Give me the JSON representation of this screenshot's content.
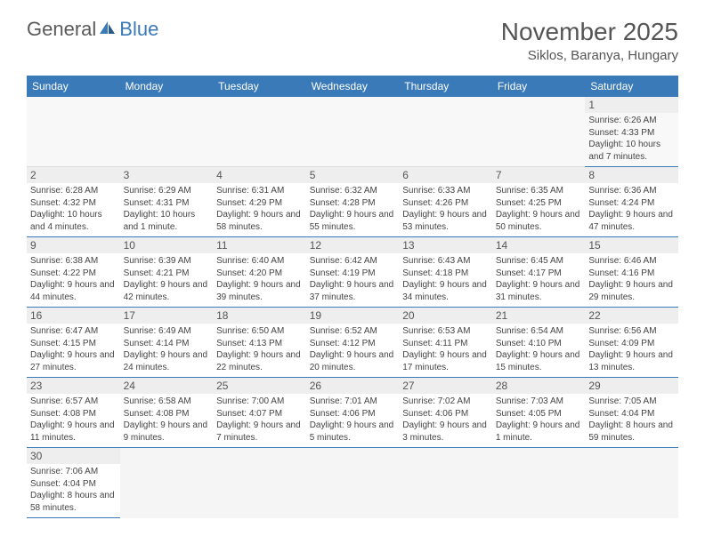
{
  "logo": {
    "text1": "General",
    "text2": "Blue"
  },
  "title": "November 2025",
  "location": "Siklos, Baranya, Hungary",
  "daysOfWeek": [
    "Sunday",
    "Monday",
    "Tuesday",
    "Wednesday",
    "Thursday",
    "Friday",
    "Saturday"
  ],
  "colors": {
    "headerBg": "#3a7ab8",
    "headerText": "#ffffff",
    "rowBorder": "#3a7ab8",
    "dayNumBg": "#eeeeee"
  },
  "weeks": [
    [
      null,
      null,
      null,
      null,
      null,
      null,
      {
        "n": "1",
        "sr": "Sunrise: 6:26 AM",
        "ss": "Sunset: 4:33 PM",
        "dl": "Daylight: 10 hours and 7 minutes."
      }
    ],
    [
      {
        "n": "2",
        "sr": "Sunrise: 6:28 AM",
        "ss": "Sunset: 4:32 PM",
        "dl": "Daylight: 10 hours and 4 minutes."
      },
      {
        "n": "3",
        "sr": "Sunrise: 6:29 AM",
        "ss": "Sunset: 4:31 PM",
        "dl": "Daylight: 10 hours and 1 minute."
      },
      {
        "n": "4",
        "sr": "Sunrise: 6:31 AM",
        "ss": "Sunset: 4:29 PM",
        "dl": "Daylight: 9 hours and 58 minutes."
      },
      {
        "n": "5",
        "sr": "Sunrise: 6:32 AM",
        "ss": "Sunset: 4:28 PM",
        "dl": "Daylight: 9 hours and 55 minutes."
      },
      {
        "n": "6",
        "sr": "Sunrise: 6:33 AM",
        "ss": "Sunset: 4:26 PM",
        "dl": "Daylight: 9 hours and 53 minutes."
      },
      {
        "n": "7",
        "sr": "Sunrise: 6:35 AM",
        "ss": "Sunset: 4:25 PM",
        "dl": "Daylight: 9 hours and 50 minutes."
      },
      {
        "n": "8",
        "sr": "Sunrise: 6:36 AM",
        "ss": "Sunset: 4:24 PM",
        "dl": "Daylight: 9 hours and 47 minutes."
      }
    ],
    [
      {
        "n": "9",
        "sr": "Sunrise: 6:38 AM",
        "ss": "Sunset: 4:22 PM",
        "dl": "Daylight: 9 hours and 44 minutes."
      },
      {
        "n": "10",
        "sr": "Sunrise: 6:39 AM",
        "ss": "Sunset: 4:21 PM",
        "dl": "Daylight: 9 hours and 42 minutes."
      },
      {
        "n": "11",
        "sr": "Sunrise: 6:40 AM",
        "ss": "Sunset: 4:20 PM",
        "dl": "Daylight: 9 hours and 39 minutes."
      },
      {
        "n": "12",
        "sr": "Sunrise: 6:42 AM",
        "ss": "Sunset: 4:19 PM",
        "dl": "Daylight: 9 hours and 37 minutes."
      },
      {
        "n": "13",
        "sr": "Sunrise: 6:43 AM",
        "ss": "Sunset: 4:18 PM",
        "dl": "Daylight: 9 hours and 34 minutes."
      },
      {
        "n": "14",
        "sr": "Sunrise: 6:45 AM",
        "ss": "Sunset: 4:17 PM",
        "dl": "Daylight: 9 hours and 31 minutes."
      },
      {
        "n": "15",
        "sr": "Sunrise: 6:46 AM",
        "ss": "Sunset: 4:16 PM",
        "dl": "Daylight: 9 hours and 29 minutes."
      }
    ],
    [
      {
        "n": "16",
        "sr": "Sunrise: 6:47 AM",
        "ss": "Sunset: 4:15 PM",
        "dl": "Daylight: 9 hours and 27 minutes."
      },
      {
        "n": "17",
        "sr": "Sunrise: 6:49 AM",
        "ss": "Sunset: 4:14 PM",
        "dl": "Daylight: 9 hours and 24 minutes."
      },
      {
        "n": "18",
        "sr": "Sunrise: 6:50 AM",
        "ss": "Sunset: 4:13 PM",
        "dl": "Daylight: 9 hours and 22 minutes."
      },
      {
        "n": "19",
        "sr": "Sunrise: 6:52 AM",
        "ss": "Sunset: 4:12 PM",
        "dl": "Daylight: 9 hours and 20 minutes."
      },
      {
        "n": "20",
        "sr": "Sunrise: 6:53 AM",
        "ss": "Sunset: 4:11 PM",
        "dl": "Daylight: 9 hours and 17 minutes."
      },
      {
        "n": "21",
        "sr": "Sunrise: 6:54 AM",
        "ss": "Sunset: 4:10 PM",
        "dl": "Daylight: 9 hours and 15 minutes."
      },
      {
        "n": "22",
        "sr": "Sunrise: 6:56 AM",
        "ss": "Sunset: 4:09 PM",
        "dl": "Daylight: 9 hours and 13 minutes."
      }
    ],
    [
      {
        "n": "23",
        "sr": "Sunrise: 6:57 AM",
        "ss": "Sunset: 4:08 PM",
        "dl": "Daylight: 9 hours and 11 minutes."
      },
      {
        "n": "24",
        "sr": "Sunrise: 6:58 AM",
        "ss": "Sunset: 4:08 PM",
        "dl": "Daylight: 9 hours and 9 minutes."
      },
      {
        "n": "25",
        "sr": "Sunrise: 7:00 AM",
        "ss": "Sunset: 4:07 PM",
        "dl": "Daylight: 9 hours and 7 minutes."
      },
      {
        "n": "26",
        "sr": "Sunrise: 7:01 AM",
        "ss": "Sunset: 4:06 PM",
        "dl": "Daylight: 9 hours and 5 minutes."
      },
      {
        "n": "27",
        "sr": "Sunrise: 7:02 AM",
        "ss": "Sunset: 4:06 PM",
        "dl": "Daylight: 9 hours and 3 minutes."
      },
      {
        "n": "28",
        "sr": "Sunrise: 7:03 AM",
        "ss": "Sunset: 4:05 PM",
        "dl": "Daylight: 9 hours and 1 minute."
      },
      {
        "n": "29",
        "sr": "Sunrise: 7:05 AM",
        "ss": "Sunset: 4:04 PM",
        "dl": "Daylight: 8 hours and 59 minutes."
      }
    ],
    [
      {
        "n": "30",
        "sr": "Sunrise: 7:06 AM",
        "ss": "Sunset: 4:04 PM",
        "dl": "Daylight: 8 hours and 58 minutes."
      },
      null,
      null,
      null,
      null,
      null,
      null
    ]
  ]
}
